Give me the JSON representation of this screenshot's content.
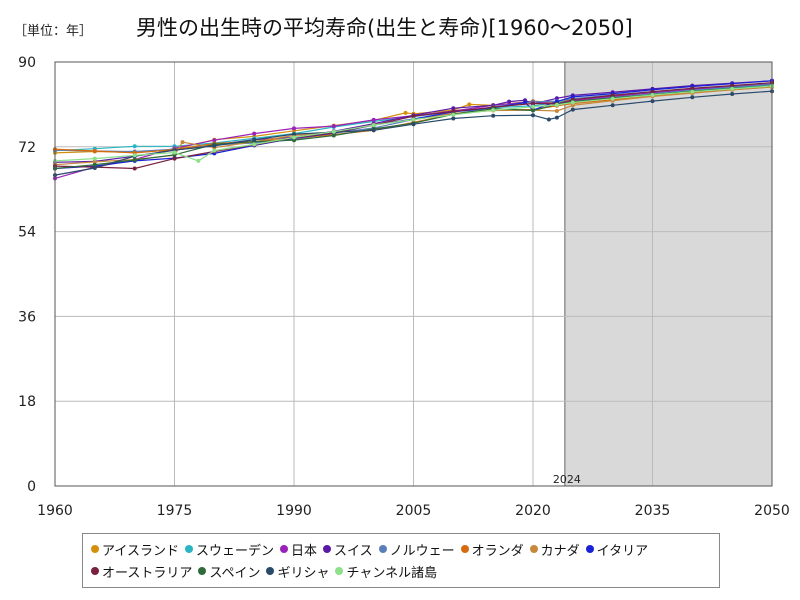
{
  "header": {
    "unit": "［単位：年］",
    "title": "男性の出生時の平均寿命(出生と寿命)[1960～2050]"
  },
  "chart_data": {
    "type": "line",
    "xlim": [
      1960,
      2050
    ],
    "ylim": [
      0,
      90
    ],
    "x_ticks": [
      1960,
      1975,
      1990,
      2005,
      2020,
      2035,
      2050
    ],
    "y_ticks": [
      0,
      18,
      36,
      54,
      72,
      90
    ],
    "forecast_start": 2024,
    "forecast_label": "2024",
    "grid": true,
    "legend_position": "bottom",
    "series": [
      {
        "name": "アイスランド",
        "color": "#d4900a",
        "points": [
          [
            1960,
            70.7
          ],
          [
            1965,
            71.0
          ],
          [
            1970,
            70.8
          ],
          [
            1975,
            71.5
          ],
          [
            1980,
            73.5
          ],
          [
            1985,
            74.2
          ],
          [
            1990,
            75.4
          ],
          [
            1995,
            76.5
          ],
          [
            2000,
            77.6
          ],
          [
            2004,
            79.2
          ],
          [
            2005,
            79.0
          ],
          [
            2010,
            79.8
          ],
          [
            2012,
            81.0
          ],
          [
            2015,
            80.8
          ],
          [
            2020,
            81.7
          ],
          [
            2023,
            81.4
          ],
          [
            2025,
            82.0
          ],
          [
            2030,
            82.7
          ],
          [
            2035,
            83.5
          ],
          [
            2040,
            84.1
          ],
          [
            2045,
            84.6
          ],
          [
            2050,
            85.1
          ]
        ]
      },
      {
        "name": "スウェーデン",
        "color": "#2ab5c4",
        "points": [
          [
            1960,
            71.2
          ],
          [
            1965,
            71.6
          ],
          [
            1970,
            72.1
          ],
          [
            1975,
            72.1
          ],
          [
            1980,
            72.8
          ],
          [
            1985,
            73.8
          ],
          [
            1990,
            74.8
          ],
          [
            1995,
            76.2
          ],
          [
            2000,
            77.4
          ],
          [
            2005,
            78.4
          ],
          [
            2010,
            79.5
          ],
          [
            2015,
            80.3
          ],
          [
            2020,
            80.7
          ],
          [
            2023,
            81.4
          ],
          [
            2025,
            81.8
          ],
          [
            2030,
            82.6
          ],
          [
            2035,
            83.4
          ],
          [
            2040,
            84.0
          ],
          [
            2045,
            84.6
          ],
          [
            2050,
            85.2
          ]
        ]
      },
      {
        "name": "日本",
        "color": "#9b22b8",
        "points": [
          [
            1960,
            65.3
          ],
          [
            1965,
            67.7
          ],
          [
            1970,
            69.3
          ],
          [
            1975,
            71.7
          ],
          [
            1980,
            73.4
          ],
          [
            1985,
            74.8
          ],
          [
            1990,
            75.9
          ],
          [
            1995,
            76.4
          ],
          [
            2000,
            77.7
          ],
          [
            2005,
            78.6
          ],
          [
            2010,
            79.6
          ],
          [
            2015,
            80.8
          ],
          [
            2020,
            81.6
          ],
          [
            2023,
            81.1
          ],
          [
            2025,
            81.8
          ],
          [
            2030,
            82.7
          ],
          [
            2035,
            83.5
          ],
          [
            2040,
            84.2
          ],
          [
            2045,
            84.8
          ],
          [
            2050,
            85.4
          ]
        ]
      },
      {
        "name": "スイス",
        "color": "#5a1aa8",
        "points": [
          [
            1960,
            68.7
          ],
          [
            1965,
            68.9
          ],
          [
            1970,
            70.0
          ],
          [
            1975,
            71.3
          ],
          [
            1980,
            72.4
          ],
          [
            1985,
            73.5
          ],
          [
            1990,
            74.0
          ],
          [
            1995,
            75.3
          ],
          [
            2000,
            76.9
          ],
          [
            2005,
            78.7
          ],
          [
            2010,
            80.2
          ],
          [
            2015,
            80.8
          ],
          [
            2017,
            81.6
          ],
          [
            2019,
            81.9
          ],
          [
            2020,
            81.1
          ],
          [
            2023,
            82.3
          ],
          [
            2025,
            82.9
          ],
          [
            2030,
            83.6
          ],
          [
            2035,
            84.3
          ],
          [
            2040,
            85.0
          ],
          [
            2045,
            85.5
          ],
          [
            2050,
            86.0
          ]
        ]
      },
      {
        "name": "ノルウェー",
        "color": "#5a7fb8",
        "points": [
          [
            1960,
            71.3
          ],
          [
            1965,
            71.1
          ],
          [
            1970,
            71.0
          ],
          [
            1975,
            71.5
          ],
          [
            1980,
            72.4
          ],
          [
            1985,
            72.8
          ],
          [
            1990,
            73.5
          ],
          [
            1995,
            74.9
          ],
          [
            2000,
            76.0
          ],
          [
            2005,
            77.8
          ],
          [
            2010,
            78.9
          ],
          [
            2015,
            80.5
          ],
          [
            2020,
            81.5
          ],
          [
            2023,
            81.7
          ],
          [
            2025,
            82.2
          ],
          [
            2030,
            83.0
          ],
          [
            2035,
            83.7
          ],
          [
            2040,
            84.4
          ],
          [
            2045,
            84.9
          ],
          [
            2050,
            85.5
          ]
        ]
      },
      {
        "name": "オランダ",
        "color": "#d66a0c",
        "points": [
          [
            1960,
            71.5
          ],
          [
            1965,
            71.1
          ],
          [
            1970,
            70.7
          ],
          [
            1975,
            71.4
          ],
          [
            1980,
            72.7
          ],
          [
            1985,
            73.1
          ],
          [
            1990,
            73.8
          ],
          [
            1995,
            74.6
          ],
          [
            2000,
            75.5
          ],
          [
            2005,
            77.2
          ],
          [
            2010,
            78.9
          ],
          [
            2015,
            79.9
          ],
          [
            2020,
            79.9
          ],
          [
            2023,
            80.7
          ],
          [
            2025,
            81.2
          ],
          [
            2030,
            82.0
          ],
          [
            2035,
            82.8
          ],
          [
            2040,
            83.5
          ],
          [
            2045,
            84.1
          ],
          [
            2050,
            84.7
          ]
        ]
      },
      {
        "name": "カナダ",
        "color": "#c8883a",
        "points": [
          [
            1960,
            68.2
          ],
          [
            1965,
            68.8
          ],
          [
            1970,
            69.3
          ],
          [
            1975,
            70.2
          ],
          [
            1976,
            73.0
          ],
          [
            1980,
            71.8
          ],
          [
            1985,
            73.1
          ],
          [
            1990,
            74.4
          ],
          [
            1995,
            75.1
          ],
          [
            2000,
            76.7
          ],
          [
            2005,
            77.8
          ],
          [
            2010,
            79.1
          ],
          [
            2015,
            79.7
          ],
          [
            2020,
            79.8
          ],
          [
            2023,
            79.6
          ],
          [
            2025,
            80.8
          ],
          [
            2030,
            81.8
          ],
          [
            2035,
            82.7
          ],
          [
            2040,
            83.4
          ],
          [
            2045,
            84.1
          ],
          [
            2050,
            84.7
          ]
        ]
      },
      {
        "name": "イタリア",
        "color": "#1a22d8",
        "points": [
          [
            1960,
            67.4
          ],
          [
            1965,
            67.9
          ],
          [
            1970,
            69.0
          ],
          [
            1975,
            69.6
          ],
          [
            1980,
            70.6
          ],
          [
            1985,
            72.3
          ],
          [
            1990,
            73.8
          ],
          [
            1995,
            74.9
          ],
          [
            2000,
            76.6
          ],
          [
            2005,
            77.9
          ],
          [
            2010,
            79.4
          ],
          [
            2015,
            80.3
          ],
          [
            2019,
            81.4
          ],
          [
            2020,
            79.8
          ],
          [
            2023,
            81.6
          ],
          [
            2025,
            82.6
          ],
          [
            2030,
            83.3
          ],
          [
            2035,
            84.1
          ],
          [
            2040,
            84.8
          ],
          [
            2045,
            85.4
          ],
          [
            2050,
            86.0
          ]
        ]
      },
      {
        "name": "オーストラリア",
        "color": "#7a2040",
        "points": [
          [
            1960,
            67.9
          ],
          [
            1965,
            67.7
          ],
          [
            1970,
            67.4
          ],
          [
            1975,
            69.5
          ],
          [
            1980,
            71.0
          ],
          [
            1985,
            72.4
          ],
          [
            1990,
            73.9
          ],
          [
            1995,
            75.0
          ],
          [
            2000,
            76.6
          ],
          [
            2005,
            78.5
          ],
          [
            2010,
            79.5
          ],
          [
            2015,
            80.4
          ],
          [
            2020,
            81.2
          ],
          [
            2023,
            81.1
          ],
          [
            2025,
            82.0
          ],
          [
            2030,
            82.9
          ],
          [
            2035,
            83.7
          ],
          [
            2040,
            84.4
          ],
          [
            2045,
            85.0
          ],
          [
            2050,
            85.6
          ]
        ]
      },
      {
        "name": "スペイン",
        "color": "#2e6a3a",
        "points": [
          [
            1960,
            67.4
          ],
          [
            1965,
            68.2
          ],
          [
            1970,
            69.2
          ],
          [
            1975,
            70.3
          ],
          [
            1980,
            72.5
          ],
          [
            1985,
            73.1
          ],
          [
            1990,
            73.4
          ],
          [
            1995,
            74.4
          ],
          [
            2000,
            75.8
          ],
          [
            2005,
            77.0
          ],
          [
            2010,
            78.9
          ],
          [
            2015,
            80.1
          ],
          [
            2020,
            79.7
          ],
          [
            2023,
            81.0
          ],
          [
            2025,
            81.6
          ],
          [
            2030,
            82.4
          ],
          [
            2035,
            83.1
          ],
          [
            2040,
            83.8
          ],
          [
            2045,
            84.4
          ],
          [
            2050,
            85.0
          ]
        ]
      },
      {
        "name": "ギリシャ",
        "color": "#2a4a6a",
        "points": [
          [
            1960,
            66.0
          ],
          [
            1965,
            67.5
          ],
          [
            1970,
            70.0
          ],
          [
            1975,
            71.3
          ],
          [
            1980,
            72.2
          ],
          [
            1985,
            73.5
          ],
          [
            1990,
            74.7
          ],
          [
            1995,
            75.1
          ],
          [
            2000,
            75.5
          ],
          [
            2005,
            76.8
          ],
          [
            2010,
            78.0
          ],
          [
            2015,
            78.6
          ],
          [
            2020,
            78.7
          ],
          [
            2022,
            77.8
          ],
          [
            2023,
            78.2
          ],
          [
            2025,
            79.9
          ],
          [
            2030,
            80.8
          ],
          [
            2035,
            81.7
          ],
          [
            2040,
            82.5
          ],
          [
            2045,
            83.2
          ],
          [
            2050,
            83.8
          ]
        ]
      },
      {
        "name": "チャンネル諸島",
        "color": "#8ee08a",
        "points": [
          [
            1960,
            69.0
          ],
          [
            1965,
            69.5
          ],
          [
            1970,
            70.2
          ],
          [
            1975,
            70.8
          ],
          [
            1978,
            69.0
          ],
          [
            1980,
            71.2
          ],
          [
            1985,
            72.5
          ],
          [
            1990,
            74.0
          ],
          [
            1995,
            75.2
          ],
          [
            2000,
            76.6
          ],
          [
            2005,
            77.8
          ],
          [
            2010,
            78.8
          ],
          [
            2015,
            79.8
          ],
          [
            2020,
            80.5
          ],
          [
            2023,
            80.9
          ],
          [
            2025,
            81.4
          ],
          [
            2030,
            82.2
          ],
          [
            2035,
            83.0
          ],
          [
            2040,
            83.7
          ],
          [
            2045,
            84.3
          ],
          [
            2050,
            84.9
          ]
        ]
      }
    ]
  }
}
